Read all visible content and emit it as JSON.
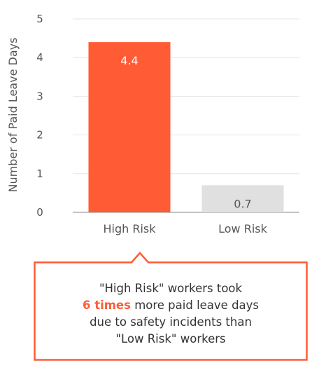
{
  "chart_data": {
    "type": "bar",
    "categories": [
      "High Risk",
      "Low Risk"
    ],
    "values": [
      4.4,
      0.7
    ],
    "value_labels": [
      "4.4",
      "0.7"
    ],
    "title": "",
    "xlabel": "",
    "ylabel": "Number of Paid Leave Days",
    "ylim": [
      0,
      5
    ],
    "yticks": [
      "0",
      "1",
      "2",
      "3",
      "4",
      "5"
    ],
    "grid": true,
    "colors": [
      "#ff5c35",
      "#e0e0e0"
    ],
    "label_colors": [
      "#ffffff",
      "#555555"
    ]
  },
  "callout": {
    "line1": "\"High Risk\" workers took",
    "highlight": "6 times",
    "line2_rest": " more paid leave days",
    "line3": "due to safety incidents than",
    "line4": "\"Low Risk\" workers",
    "accent": "#ff5c35"
  }
}
